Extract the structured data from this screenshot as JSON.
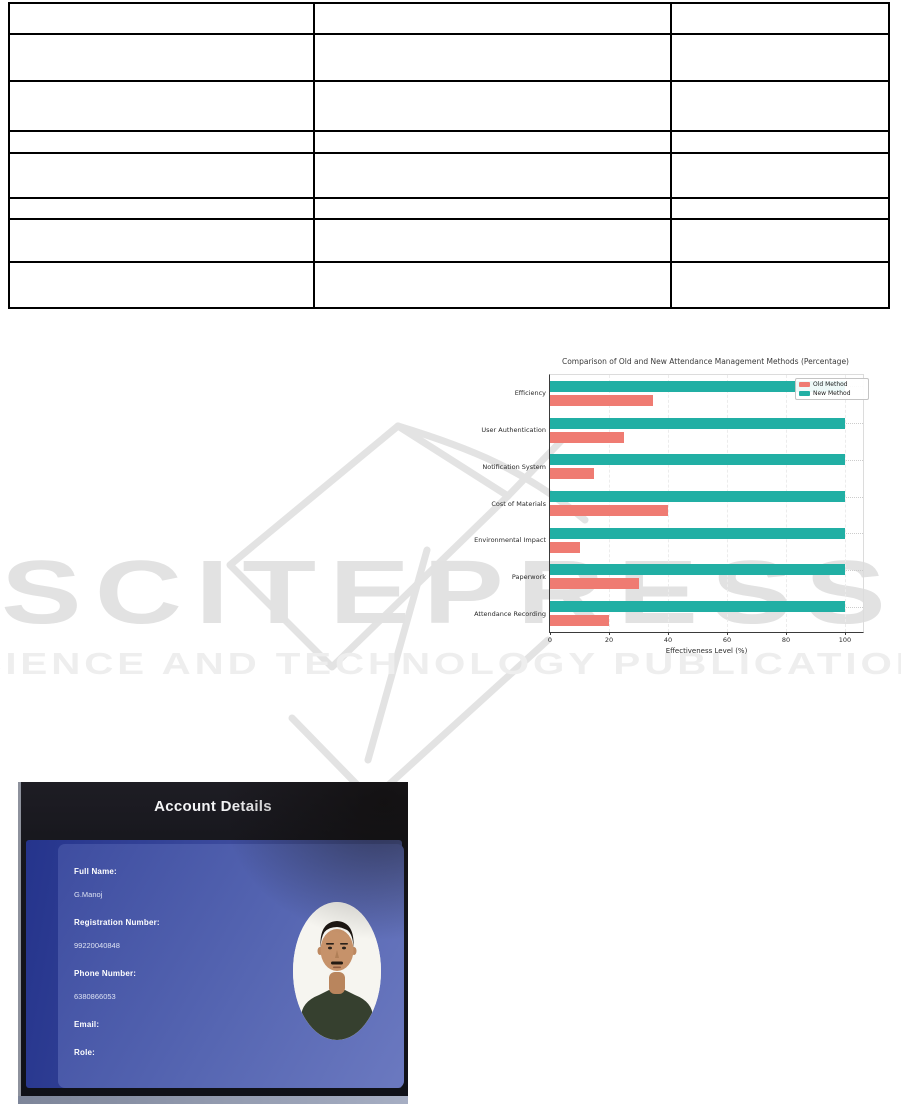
{
  "watermark": {
    "title": "SCITEPRESS",
    "subtitle": "SCIENCE AND TECHNOLOGY PUBLICATIONS",
    "color": "#e2e2e2"
  },
  "table": {
    "cells": [
      [
        "",
        "",
        ""
      ],
      [
        "",
        "",
        ""
      ],
      [
        "",
        "",
        ""
      ],
      [
        "",
        "",
        ""
      ],
      [
        "",
        "",
        ""
      ],
      [
        "",
        "",
        ""
      ],
      [
        "",
        "",
        ""
      ],
      [
        "",
        "",
        ""
      ]
    ]
  },
  "chart_data": {
    "type": "bar",
    "orientation": "horizontal",
    "title": "Comparison of Old and New Attendance Management Methods (Percentage)",
    "categories": [
      "Efficiency",
      "User Authentication",
      "Notification System",
      "Cost of Materials",
      "Environmental Impact",
      "Paperwork",
      "Attendance Recording"
    ],
    "series": [
      {
        "name": "Old Method",
        "color": "#ef7b72",
        "values": [
          35,
          25,
          15,
          40,
          10,
          30,
          20
        ]
      },
      {
        "name": "New Method",
        "color": "#21afa4",
        "values": [
          100,
          100,
          100,
          100,
          100,
          100,
          100
        ]
      }
    ],
    "xlabel": "Effectiveness Level (%)",
    "xlim": [
      0,
      100
    ],
    "xticks": [
      0,
      20,
      40,
      60,
      80,
      100
    ],
    "grid": "dotted",
    "legend_position": "upper right"
  },
  "account_panel": {
    "title": "Account Details",
    "fields": [
      {
        "label": "Full Name:",
        "value": "G.Manoj"
      },
      {
        "label": "Registration Number:",
        "value": "99220040848"
      },
      {
        "label": "Phone Number:",
        "value": "6380866053"
      },
      {
        "label": "Email:",
        "value": ""
      },
      {
        "label": "Role:",
        "value": ""
      }
    ],
    "avatar": "person-photo",
    "panel_color": "#3e4da0"
  }
}
